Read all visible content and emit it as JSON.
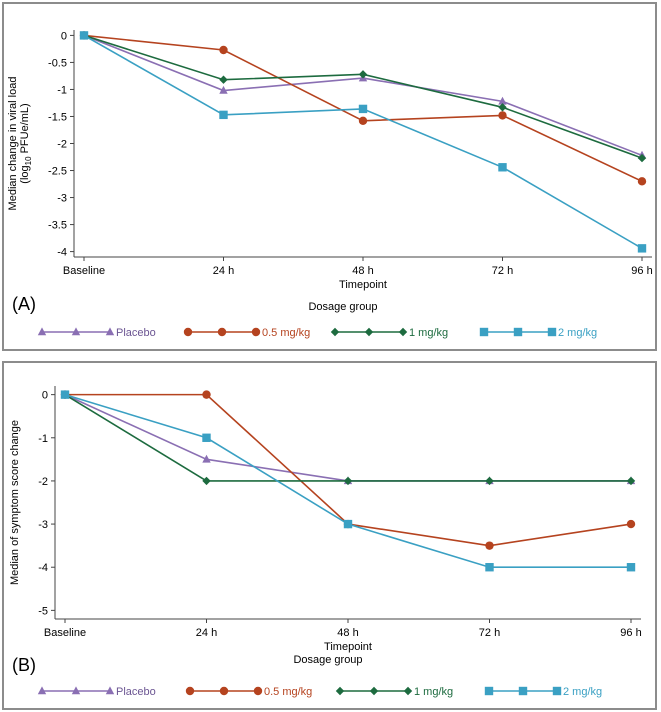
{
  "chart_data": [
    {
      "type": "line",
      "panel_label": "(A)",
      "xlabel": "Timepoint",
      "ylabel_lines": [
        "Median change in viral load",
        "(log10 PFUe/mL)"
      ],
      "ylabel_base": "(log",
      "ylabel_sub": "10",
      "ylabel_tail": " PFUe/mL)",
      "ylim": [
        -4.1,
        0.1
      ],
      "yticks": [
        0,
        -0.5,
        -1,
        -1.5,
        -2,
        -2.5,
        -3,
        -3.5,
        -4
      ],
      "ytick_labels": [
        "0",
        "-0.5",
        "-1",
        "-1.5",
        "-2",
        "-2.5",
        "-3",
        "-3.5",
        "-4"
      ],
      "categories": [
        "Baseline",
        "24 h",
        "48 h",
        "72 h",
        "96 h"
      ],
      "legend_title": "Dosage group",
      "series": [
        {
          "name": "Placebo",
          "marker": "triangle",
          "color": "#8a6fb3",
          "values": [
            0,
            -1.02,
            -0.79,
            -1.22,
            -2.22
          ]
        },
        {
          "name": "0.5 mg/kg",
          "marker": "circle",
          "color": "#b5431f",
          "values": [
            0,
            -0.27,
            -1.58,
            -1.48,
            -2.7
          ]
        },
        {
          "name": "1 mg/kg",
          "marker": "diamond",
          "color": "#1d6b3f",
          "values": [
            0,
            -0.82,
            -0.72,
            -1.33,
            -2.27
          ]
        },
        {
          "name": "2 mg/kg",
          "marker": "square",
          "color": "#3aa0c3",
          "values": [
            0,
            -1.47,
            -1.36,
            -2.44,
            -3.94
          ]
        }
      ]
    },
    {
      "type": "line",
      "panel_label": "(B)",
      "xlabel": "Timepoint",
      "ylabel_lines": [
        "Median of symptom score change"
      ],
      "ylim": [
        -5.2,
        0.2
      ],
      "yticks": [
        0,
        -1,
        -2,
        -3,
        -4,
        -5
      ],
      "ytick_labels": [
        "0",
        "-1",
        "-2",
        "-3",
        "-4",
        "-5"
      ],
      "categories": [
        "Baseline",
        "24 h",
        "48 h",
        "72 h",
        "96 h"
      ],
      "legend_title": "Dosage group",
      "series": [
        {
          "name": "Placebo",
          "marker": "triangle",
          "color": "#8a6fb3",
          "values": [
            0,
            -1.5,
            -2,
            -2,
            -2
          ]
        },
        {
          "name": "0.5 mg/kg",
          "marker": "circle",
          "color": "#b5431f",
          "values": [
            0,
            0,
            -3,
            -3.5,
            -3
          ]
        },
        {
          "name": "1 mg/kg",
          "marker": "diamond",
          "color": "#1d6b3f",
          "values": [
            0,
            -2,
            -2,
            -2,
            -2
          ]
        },
        {
          "name": "2 mg/kg",
          "marker": "square",
          "color": "#3aa0c3",
          "values": [
            0,
            -1,
            -3,
            -4,
            -4
          ]
        }
      ]
    }
  ]
}
